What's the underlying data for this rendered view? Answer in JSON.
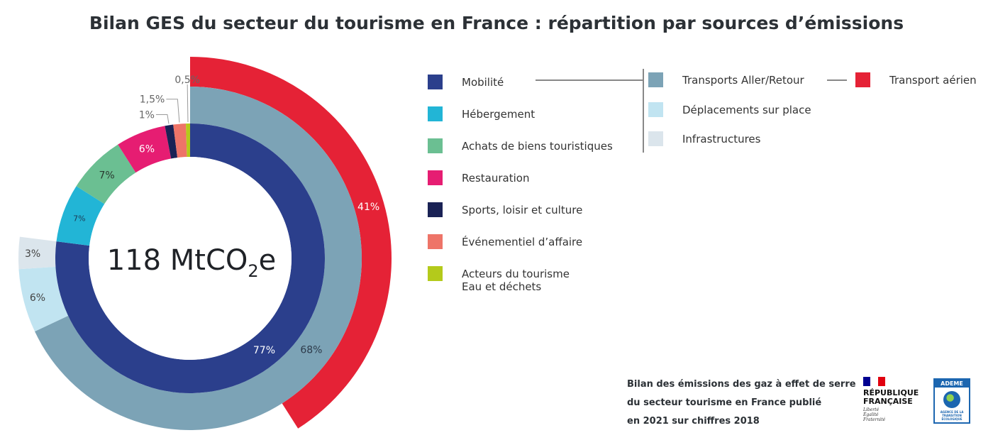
{
  "title": "Bilan GES du secteur du tourisme en France : répartition par sources d’émissions",
  "chart_data": {
    "type": "sunburst",
    "center_label": {
      "value": "118 MtCO",
      "sub": "2",
      "unit": "e"
    },
    "inner_ring": [
      {
        "name": "Mobilité",
        "value": 77,
        "label": "77%",
        "color": "#2b3f8c"
      },
      {
        "name": "Hébergement",
        "value": 7,
        "label": "7%",
        "color": "#22b5d6"
      },
      {
        "name": "Achats de biens touristiques",
        "value": 7,
        "label": "7%",
        "color": "#6bbf92"
      },
      {
        "name": "Restauration",
        "value": 6,
        "label": "6%",
        "color": "#e61d72"
      },
      {
        "name": "Sports, loisir et culture",
        "value": 1,
        "label": "1%",
        "color": "#1a2255"
      },
      {
        "name": "Événementiel d’affaire",
        "value": 1.5,
        "label": "1,5%",
        "color": "#ee7468"
      },
      {
        "name": "Acteurs du tourisme Eau et déchets",
        "value": 0.5,
        "label": "0,5%",
        "color": "#b4ca1b"
      }
    ],
    "middle_ring": [
      {
        "name": "Transports Aller/Retour",
        "value": 68,
        "label": "68%",
        "color": "#7ca3b6"
      },
      {
        "name": "Déplacements sur place",
        "value": 6,
        "label": "6%",
        "color": "#c1e4f1"
      },
      {
        "name": "Infrastructures",
        "value": 3,
        "label": "3%",
        "color": "#dbe5ec"
      }
    ],
    "outer_ring": [
      {
        "name": "Transport aérien",
        "value": 41,
        "label": "41%",
        "color": "#e52236"
      }
    ]
  },
  "legend": {
    "main": [
      {
        "label": "Mobilité",
        "color": "#2b3f8c"
      },
      {
        "label": "Hébergement",
        "color": "#22b5d6"
      },
      {
        "label": "Achats de biens touristiques",
        "color": "#6bbf92"
      },
      {
        "label": "Restauration",
        "color": "#e61d72"
      },
      {
        "label": "Sports, loisir et culture",
        "color": "#1a2255"
      },
      {
        "label": "Événementiel d’affaire",
        "color": "#ee7468"
      },
      {
        "label": "Acteurs du tourisme",
        "label2": "Eau et déchets",
        "color": "#b4ca1b"
      }
    ],
    "mobility": [
      {
        "label": "Transports Aller/Retour",
        "color": "#7ca3b6"
      },
      {
        "label": "Déplacements sur place",
        "color": "#c1e4f1"
      },
      {
        "label": "Infrastructures",
        "color": "#dbe5ec"
      }
    ],
    "air": {
      "label": "Transport aérien",
      "color": "#e52236"
    }
  },
  "footer": {
    "line1": "Bilan des émissions des gaz à effet de serre",
    "line2": "du secteur tourisme en France publié",
    "line3": "en 2021 sur chiffres 2018"
  },
  "logos": {
    "rf_line1": "RÉPUBLIQUE",
    "rf_line2": "FRANÇAISE",
    "rf_motto": [
      "Liberté",
      "Égalité",
      "Fraternité"
    ],
    "rf_flag": [
      "#000091",
      "#ffffff",
      "#e1000f"
    ],
    "ademe_name": "ADEME",
    "ademe_sub": [
      "AGENCE DE LA",
      "TRANSITION",
      "ÉCOLOGIQUE"
    ]
  }
}
